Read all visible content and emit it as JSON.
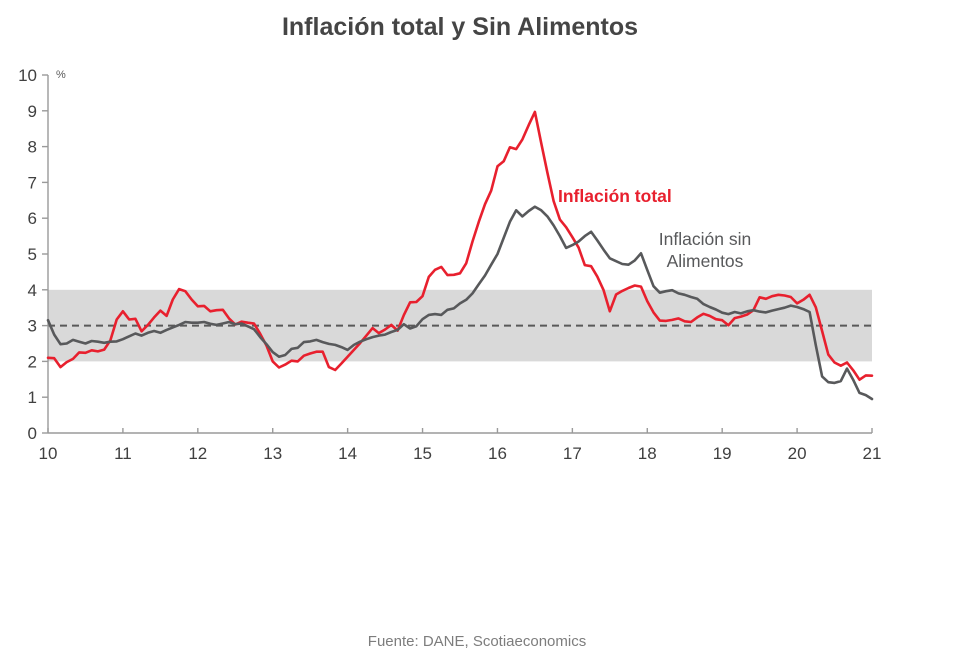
{
  "title": "Inflación total y Sin Alimentos",
  "source": "Fuente: DANE, Scotiaeconomics",
  "annotations": {
    "total": "Inflación total",
    "sin_line1": "Inflación  sin",
    "sin_line2": "Alimentos"
  },
  "axis": {
    "unit": "%",
    "x_ticks": [
      "10",
      "11",
      "12",
      "13",
      "14",
      "15",
      "16",
      "17",
      "18",
      "19",
      "20",
      "21"
    ],
    "y_ticks": [
      "0",
      "1",
      "2",
      "3",
      "4",
      "5",
      "6",
      "7",
      "8",
      "9",
      "10"
    ]
  },
  "colors": {
    "total": "#E8202E",
    "core": "#58595B",
    "band": "#D9D9D9",
    "target_line": "#595959",
    "axis": "#9a9a9a",
    "tick_text": "#404040"
  },
  "chart_data": {
    "type": "line",
    "title": "Inflación total y Sin Alimentos",
    "ylabel": "%",
    "ylim": [
      0,
      10
    ],
    "x_start_year": 2010,
    "x_end_year": 2021,
    "x_step_months": 1,
    "grid": false,
    "legend_position": "inline-annotations",
    "target_band": {
      "from": 2,
      "to": 4
    },
    "target_line": 3,
    "series": [
      {
        "name": "Inflación total",
        "color_key": "total",
        "values": [
          2.1,
          2.09,
          1.84,
          1.98,
          2.07,
          2.25,
          2.24,
          2.31,
          2.28,
          2.33,
          2.59,
          3.17,
          3.4,
          3.17,
          3.19,
          2.84,
          3.02,
          3.23,
          3.42,
          3.27,
          3.73,
          4.02,
          3.96,
          3.73,
          3.54,
          3.55,
          3.4,
          3.43,
          3.44,
          3.2,
          3.03,
          3.11,
          3.08,
          3.06,
          2.77,
          2.44,
          2.0,
          1.83,
          1.91,
          2.02,
          2.0,
          2.16,
          2.22,
          2.27,
          2.27,
          1.84,
          1.76,
          1.94,
          2.13,
          2.32,
          2.51,
          2.72,
          2.93,
          2.79,
          2.89,
          3.02,
          2.86,
          3.29,
          3.65,
          3.66,
          3.82,
          4.36,
          4.56,
          4.64,
          4.41,
          4.42,
          4.46,
          4.74,
          5.35,
          5.89,
          6.39,
          6.77,
          7.45,
          7.59,
          7.98,
          7.93,
          8.2,
          8.6,
          8.97,
          8.1,
          7.27,
          6.48,
          5.96,
          5.75,
          5.47,
          5.18,
          4.69,
          4.66,
          4.37,
          3.99,
          3.4,
          3.87,
          3.97,
          4.05,
          4.12,
          4.09,
          3.68,
          3.37,
          3.14,
          3.13,
          3.16,
          3.2,
          3.12,
          3.1,
          3.23,
          3.33,
          3.27,
          3.18,
          3.15,
          3.01,
          3.21,
          3.25,
          3.31,
          3.43,
          3.79,
          3.75,
          3.82,
          3.86,
          3.84,
          3.8,
          3.62,
          3.72,
          3.86,
          3.51,
          2.85,
          2.19,
          1.97,
          1.88,
          1.97,
          1.75,
          1.49,
          1.61,
          1.6
        ]
      },
      {
        "name": "Inflación sin Alimentos",
        "color_key": "core",
        "values": [
          3.15,
          2.75,
          2.48,
          2.5,
          2.6,
          2.55,
          2.5,
          2.57,
          2.55,
          2.52,
          2.55,
          2.56,
          2.62,
          2.7,
          2.78,
          2.72,
          2.8,
          2.85,
          2.8,
          2.88,
          2.95,
          3.02,
          3.1,
          3.08,
          3.08,
          3.1,
          3.05,
          3.02,
          3.06,
          3.1,
          3.04,
          3.06,
          2.98,
          2.9,
          2.68,
          2.48,
          2.26,
          2.13,
          2.18,
          2.35,
          2.38,
          2.54,
          2.56,
          2.6,
          2.54,
          2.49,
          2.46,
          2.4,
          2.32,
          2.46,
          2.55,
          2.62,
          2.68,
          2.72,
          2.75,
          2.82,
          2.88,
          3.04,
          2.92,
          2.98,
          3.18,
          3.3,
          3.32,
          3.3,
          3.44,
          3.48,
          3.62,
          3.72,
          3.9,
          4.15,
          4.4,
          4.7,
          5.0,
          5.45,
          5.9,
          6.22,
          6.05,
          6.2,
          6.32,
          6.22,
          6.05,
          5.8,
          5.5,
          5.17,
          5.25,
          5.35,
          5.5,
          5.62,
          5.38,
          5.12,
          4.88,
          4.8,
          4.72,
          4.7,
          4.82,
          5.02,
          4.55,
          4.1,
          3.92,
          3.96,
          3.99,
          3.9,
          3.86,
          3.8,
          3.75,
          3.6,
          3.52,
          3.45,
          3.36,
          3.32,
          3.38,
          3.34,
          3.4,
          3.43,
          3.39,
          3.37,
          3.42,
          3.46,
          3.5,
          3.56,
          3.52,
          3.46,
          3.38,
          2.45,
          1.58,
          1.42,
          1.4,
          1.45,
          1.8,
          1.48,
          1.12,
          1.06,
          0.95
        ]
      }
    ]
  }
}
